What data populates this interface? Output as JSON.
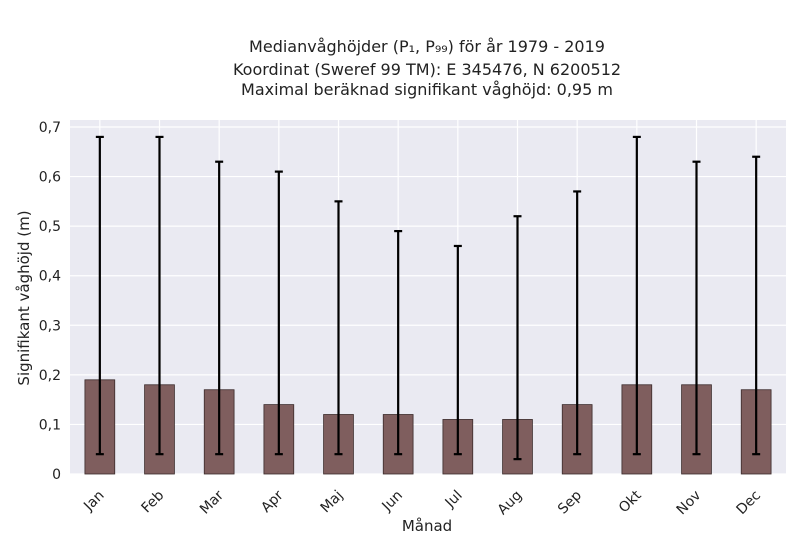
{
  "chart_data": {
    "type": "bar",
    "title_lines": [
      "Medianvåghöjder (P₁, P₉₉) för år 1979 - 2019",
      "Koordinat (Sweref 99 TM): E 345476, N 6200512",
      "Maximal beräknad signifikant våghöjd: 0,95 m"
    ],
    "xlabel": "Månad",
    "ylabel": "Signifikant våghöjd (m)",
    "categories": [
      "Jan",
      "Feb",
      "Mar",
      "Apr",
      "Maj",
      "Jun",
      "Jul",
      "Aug",
      "Sep",
      "Okt",
      "Nov",
      "Dec"
    ],
    "series": [
      {
        "values": [
          0.19,
          0.18,
          0.17,
          0.14,
          0.12,
          0.12,
          0.11,
          0.11,
          0.14,
          0.18,
          0.18,
          0.17
        ],
        "p1": [
          0.04,
          0.04,
          0.04,
          0.04,
          0.04,
          0.04,
          0.04,
          0.03,
          0.04,
          0.04,
          0.04,
          0.04
        ],
        "p99": [
          0.68,
          0.68,
          0.63,
          0.61,
          0.55,
          0.49,
          0.46,
          0.52,
          0.57,
          0.68,
          0.63,
          0.64
        ]
      }
    ],
    "ylim": [
      0,
      0.7
    ],
    "yticks": [
      0,
      0.1,
      0.2,
      0.3,
      0.4,
      0.5,
      0.6,
      0.7
    ],
    "ytick_labels": [
      "0",
      "0,1",
      "0,2",
      "0,3",
      "0,4",
      "0,5",
      "0,6",
      "0,7"
    ],
    "grid": true,
    "colors": {
      "bar_fill": "#7f5e5e",
      "bar_edge": "#3a2a2a",
      "plot_background": "#eaeaf2",
      "grid": "#ffffff",
      "error_bar": "#000000"
    }
  }
}
